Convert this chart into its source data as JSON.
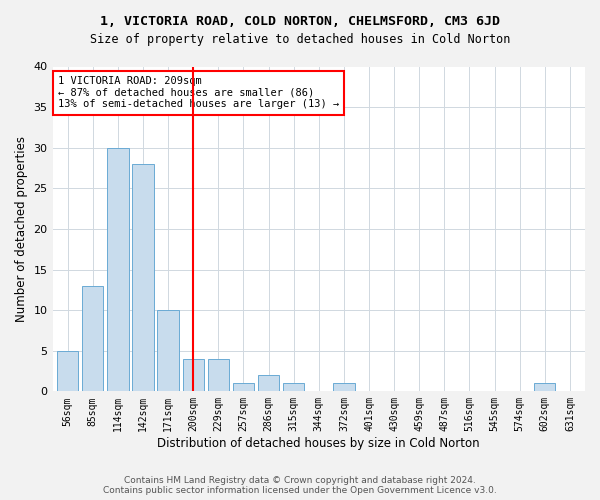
{
  "title_line1": "1, VICTORIA ROAD, COLD NORTON, CHELMSFORD, CM3 6JD",
  "title_line2": "Size of property relative to detached houses in Cold Norton",
  "xlabel": "Distribution of detached houses by size in Cold Norton",
  "ylabel": "Number of detached properties",
  "bin_labels": [
    "56sqm",
    "85sqm",
    "114sqm",
    "142sqm",
    "171sqm",
    "200sqm",
    "229sqm",
    "257sqm",
    "286sqm",
    "315sqm",
    "344sqm",
    "372sqm",
    "401sqm",
    "430sqm",
    "459sqm",
    "487sqm",
    "516sqm",
    "545sqm",
    "574sqm",
    "602sqm",
    "631sqm"
  ],
  "bar_values": [
    5,
    13,
    30,
    28,
    10,
    4,
    4,
    1,
    2,
    1,
    0,
    1,
    0,
    0,
    0,
    0,
    0,
    0,
    0,
    1,
    0
  ],
  "bar_color": "#c8dced",
  "bar_edge_color": "#6aaad4",
  "vline_x": 5,
  "annotation_text": "1 VICTORIA ROAD: 209sqm\n← 87% of detached houses are smaller (86)\n13% of semi-detached houses are larger (13) →",
  "annotation_box_color": "white",
  "annotation_box_edge_color": "red",
  "vline_color": "red",
  "ylim": [
    0,
    40
  ],
  "yticks": [
    0,
    5,
    10,
    15,
    20,
    25,
    30,
    35,
    40
  ],
  "footer_text": "Contains HM Land Registry data © Crown copyright and database right 2024.\nContains public sector information licensed under the Open Government Licence v3.0.",
  "bg_color": "#f2f2f2",
  "plot_bg_color": "white",
  "grid_color": "#d0d8e0",
  "title1_fontsize": 9.5,
  "title2_fontsize": 8.5,
  "n_bins": 21
}
